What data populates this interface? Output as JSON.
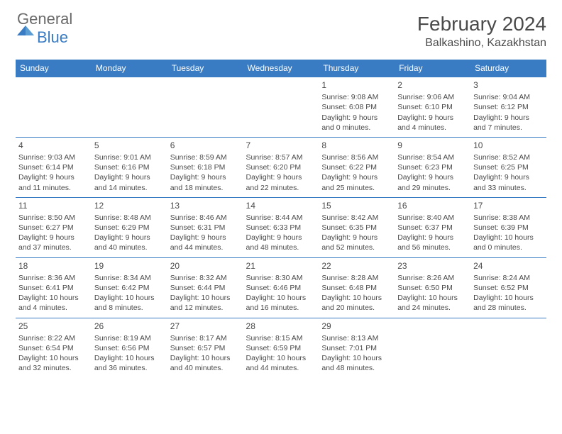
{
  "logo": {
    "general": "General",
    "blue": "Blue"
  },
  "title": "February 2024",
  "location": "Balkashino, Kazakhstan",
  "colors": {
    "header_bg": "#3a7cc4",
    "header_text": "#ffffff",
    "text": "#4a4a4a",
    "border": "#3a7cc4",
    "logo_gray": "#6b6b6b",
    "logo_blue": "#3a7cc4"
  },
  "day_headers": [
    "Sunday",
    "Monday",
    "Tuesday",
    "Wednesday",
    "Thursday",
    "Friday",
    "Saturday"
  ],
  "weeks": [
    [
      {
        "empty": true
      },
      {
        "empty": true
      },
      {
        "empty": true
      },
      {
        "empty": true
      },
      {
        "day": "1",
        "sunrise": "Sunrise: 9:08 AM",
        "sunset": "Sunset: 6:08 PM",
        "daylight": "Daylight: 9 hours and 0 minutes."
      },
      {
        "day": "2",
        "sunrise": "Sunrise: 9:06 AM",
        "sunset": "Sunset: 6:10 PM",
        "daylight": "Daylight: 9 hours and 4 minutes."
      },
      {
        "day": "3",
        "sunrise": "Sunrise: 9:04 AM",
        "sunset": "Sunset: 6:12 PM",
        "daylight": "Daylight: 9 hours and 7 minutes."
      }
    ],
    [
      {
        "day": "4",
        "sunrise": "Sunrise: 9:03 AM",
        "sunset": "Sunset: 6:14 PM",
        "daylight": "Daylight: 9 hours and 11 minutes."
      },
      {
        "day": "5",
        "sunrise": "Sunrise: 9:01 AM",
        "sunset": "Sunset: 6:16 PM",
        "daylight": "Daylight: 9 hours and 14 minutes."
      },
      {
        "day": "6",
        "sunrise": "Sunrise: 8:59 AM",
        "sunset": "Sunset: 6:18 PM",
        "daylight": "Daylight: 9 hours and 18 minutes."
      },
      {
        "day": "7",
        "sunrise": "Sunrise: 8:57 AM",
        "sunset": "Sunset: 6:20 PM",
        "daylight": "Daylight: 9 hours and 22 minutes."
      },
      {
        "day": "8",
        "sunrise": "Sunrise: 8:56 AM",
        "sunset": "Sunset: 6:22 PM",
        "daylight": "Daylight: 9 hours and 25 minutes."
      },
      {
        "day": "9",
        "sunrise": "Sunrise: 8:54 AM",
        "sunset": "Sunset: 6:23 PM",
        "daylight": "Daylight: 9 hours and 29 minutes."
      },
      {
        "day": "10",
        "sunrise": "Sunrise: 8:52 AM",
        "sunset": "Sunset: 6:25 PM",
        "daylight": "Daylight: 9 hours and 33 minutes."
      }
    ],
    [
      {
        "day": "11",
        "sunrise": "Sunrise: 8:50 AM",
        "sunset": "Sunset: 6:27 PM",
        "daylight": "Daylight: 9 hours and 37 minutes."
      },
      {
        "day": "12",
        "sunrise": "Sunrise: 8:48 AM",
        "sunset": "Sunset: 6:29 PM",
        "daylight": "Daylight: 9 hours and 40 minutes."
      },
      {
        "day": "13",
        "sunrise": "Sunrise: 8:46 AM",
        "sunset": "Sunset: 6:31 PM",
        "daylight": "Daylight: 9 hours and 44 minutes."
      },
      {
        "day": "14",
        "sunrise": "Sunrise: 8:44 AM",
        "sunset": "Sunset: 6:33 PM",
        "daylight": "Daylight: 9 hours and 48 minutes."
      },
      {
        "day": "15",
        "sunrise": "Sunrise: 8:42 AM",
        "sunset": "Sunset: 6:35 PM",
        "daylight": "Daylight: 9 hours and 52 minutes."
      },
      {
        "day": "16",
        "sunrise": "Sunrise: 8:40 AM",
        "sunset": "Sunset: 6:37 PM",
        "daylight": "Daylight: 9 hours and 56 minutes."
      },
      {
        "day": "17",
        "sunrise": "Sunrise: 8:38 AM",
        "sunset": "Sunset: 6:39 PM",
        "daylight": "Daylight: 10 hours and 0 minutes."
      }
    ],
    [
      {
        "day": "18",
        "sunrise": "Sunrise: 8:36 AM",
        "sunset": "Sunset: 6:41 PM",
        "daylight": "Daylight: 10 hours and 4 minutes."
      },
      {
        "day": "19",
        "sunrise": "Sunrise: 8:34 AM",
        "sunset": "Sunset: 6:42 PM",
        "daylight": "Daylight: 10 hours and 8 minutes."
      },
      {
        "day": "20",
        "sunrise": "Sunrise: 8:32 AM",
        "sunset": "Sunset: 6:44 PM",
        "daylight": "Daylight: 10 hours and 12 minutes."
      },
      {
        "day": "21",
        "sunrise": "Sunrise: 8:30 AM",
        "sunset": "Sunset: 6:46 PM",
        "daylight": "Daylight: 10 hours and 16 minutes."
      },
      {
        "day": "22",
        "sunrise": "Sunrise: 8:28 AM",
        "sunset": "Sunset: 6:48 PM",
        "daylight": "Daylight: 10 hours and 20 minutes."
      },
      {
        "day": "23",
        "sunrise": "Sunrise: 8:26 AM",
        "sunset": "Sunset: 6:50 PM",
        "daylight": "Daylight: 10 hours and 24 minutes."
      },
      {
        "day": "24",
        "sunrise": "Sunrise: 8:24 AM",
        "sunset": "Sunset: 6:52 PM",
        "daylight": "Daylight: 10 hours and 28 minutes."
      }
    ],
    [
      {
        "day": "25",
        "sunrise": "Sunrise: 8:22 AM",
        "sunset": "Sunset: 6:54 PM",
        "daylight": "Daylight: 10 hours and 32 minutes."
      },
      {
        "day": "26",
        "sunrise": "Sunrise: 8:19 AM",
        "sunset": "Sunset: 6:56 PM",
        "daylight": "Daylight: 10 hours and 36 minutes."
      },
      {
        "day": "27",
        "sunrise": "Sunrise: 8:17 AM",
        "sunset": "Sunset: 6:57 PM",
        "daylight": "Daylight: 10 hours and 40 minutes."
      },
      {
        "day": "28",
        "sunrise": "Sunrise: 8:15 AM",
        "sunset": "Sunset: 6:59 PM",
        "daylight": "Daylight: 10 hours and 44 minutes."
      },
      {
        "day": "29",
        "sunrise": "Sunrise: 8:13 AM",
        "sunset": "Sunset: 7:01 PM",
        "daylight": "Daylight: 10 hours and 48 minutes."
      },
      {
        "empty": true
      },
      {
        "empty": true
      }
    ]
  ]
}
